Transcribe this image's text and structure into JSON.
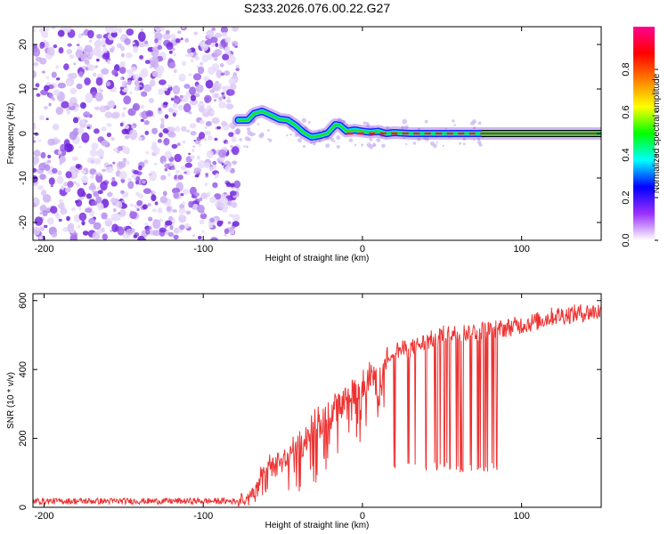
{
  "title": "S233.2026.076.00.22.G27",
  "chart_data": [
    {
      "type": "heatmap",
      "name": "spectrogram",
      "xlabel": "Height of straight line (km)",
      "ylabel": "Frequency (Hz)",
      "xlim": [
        -207,
        150
      ],
      "ylim": [
        -24,
        24
      ],
      "xticks": [
        -200,
        -100,
        0,
        100
      ],
      "yticks": [
        -20,
        -10,
        0,
        10,
        20
      ],
      "noise_region_x": [
        -207,
        -78
      ],
      "signal_track": [
        {
          "x": -78,
          "y": 3.0
        },
        {
          "x": -72,
          "y": 3.0
        },
        {
          "x": -68,
          "y": 4.5
        },
        {
          "x": -63,
          "y": 5.0
        },
        {
          "x": -58,
          "y": 4.2
        },
        {
          "x": -52,
          "y": 3.2
        },
        {
          "x": -47,
          "y": 3.0
        },
        {
          "x": -42,
          "y": 1.8
        },
        {
          "x": -37,
          "y": 0.2
        },
        {
          "x": -32,
          "y": -0.8
        },
        {
          "x": -27,
          "y": -0.5
        },
        {
          "x": -22,
          "y": 0.0
        },
        {
          "x": -17,
          "y": 2.0
        },
        {
          "x": -14,
          "y": 1.8
        },
        {
          "x": -10,
          "y": 0.5
        },
        {
          "x": -5,
          "y": 0.8
        },
        {
          "x": 0,
          "y": 0.5
        },
        {
          "x": 5,
          "y": 0.3
        },
        {
          "x": 10,
          "y": 0.5
        },
        {
          "x": 15,
          "y": 0.0
        },
        {
          "x": 20,
          "y": 0.2
        },
        {
          "x": 30,
          "y": 0.0
        },
        {
          "x": 40,
          "y": 0.0
        },
        {
          "x": 60,
          "y": 0.0
        },
        {
          "x": 80,
          "y": 0.0
        },
        {
          "x": 120,
          "y": 0.0
        },
        {
          "x": 150,
          "y": 0.0
        }
      ],
      "colorbar": {
        "label": "Normalized spectral amplitude",
        "range": [
          0,
          1
        ],
        "ticks": [
          "0.0",
          "0.2",
          "0.4",
          "0.6",
          "0.8"
        ],
        "tick_values": [
          0.0,
          0.2,
          0.4,
          0.6,
          0.8
        ],
        "colors": [
          "#ffffff",
          "#9b30ff",
          "#0000ff",
          "#00ffff",
          "#00ff00",
          "#ffff00",
          "#ff8000",
          "#ff0000",
          "#ff0090"
        ]
      }
    },
    {
      "type": "line",
      "name": "snr",
      "xlabel": "Height of straight line (km)",
      "ylabel": "SNR (10 * v/v)",
      "xlim": [
        -207,
        150
      ],
      "ylim": [
        0,
        620
      ],
      "xticks": [
        -200,
        -100,
        0,
        100
      ],
      "yticks": [
        0,
        200,
        400,
        600
      ],
      "color": "#ee3333",
      "envelope": [
        {
          "x": -207,
          "y": 18
        },
        {
          "x": -80,
          "y": 18
        },
        {
          "x": -75,
          "y": 22
        },
        {
          "x": -70,
          "y": 55
        },
        {
          "x": -60,
          "y": 130
        },
        {
          "x": -50,
          "y": 170
        },
        {
          "x": -40,
          "y": 220
        },
        {
          "x": -30,
          "y": 270
        },
        {
          "x": -20,
          "y": 310
        },
        {
          "x": -10,
          "y": 350
        },
        {
          "x": 0,
          "y": 390
        },
        {
          "x": 10,
          "y": 430
        },
        {
          "x": 20,
          "y": 455
        },
        {
          "x": 30,
          "y": 460
        },
        {
          "x": 40,
          "y": 480
        },
        {
          "x": 50,
          "y": 500
        },
        {
          "x": 60,
          "y": 505
        },
        {
          "x": 70,
          "y": 510
        },
        {
          "x": 80,
          "y": 515
        },
        {
          "x": 90,
          "y": 520
        },
        {
          "x": 100,
          "y": 530
        },
        {
          "x": 110,
          "y": 540
        },
        {
          "x": 120,
          "y": 555
        },
        {
          "x": 130,
          "y": 560
        },
        {
          "x": 140,
          "y": 565
        },
        {
          "x": 150,
          "y": 570
        }
      ],
      "dropout_region_x": [
        18,
        86
      ],
      "dropout_level": 115
    }
  ]
}
